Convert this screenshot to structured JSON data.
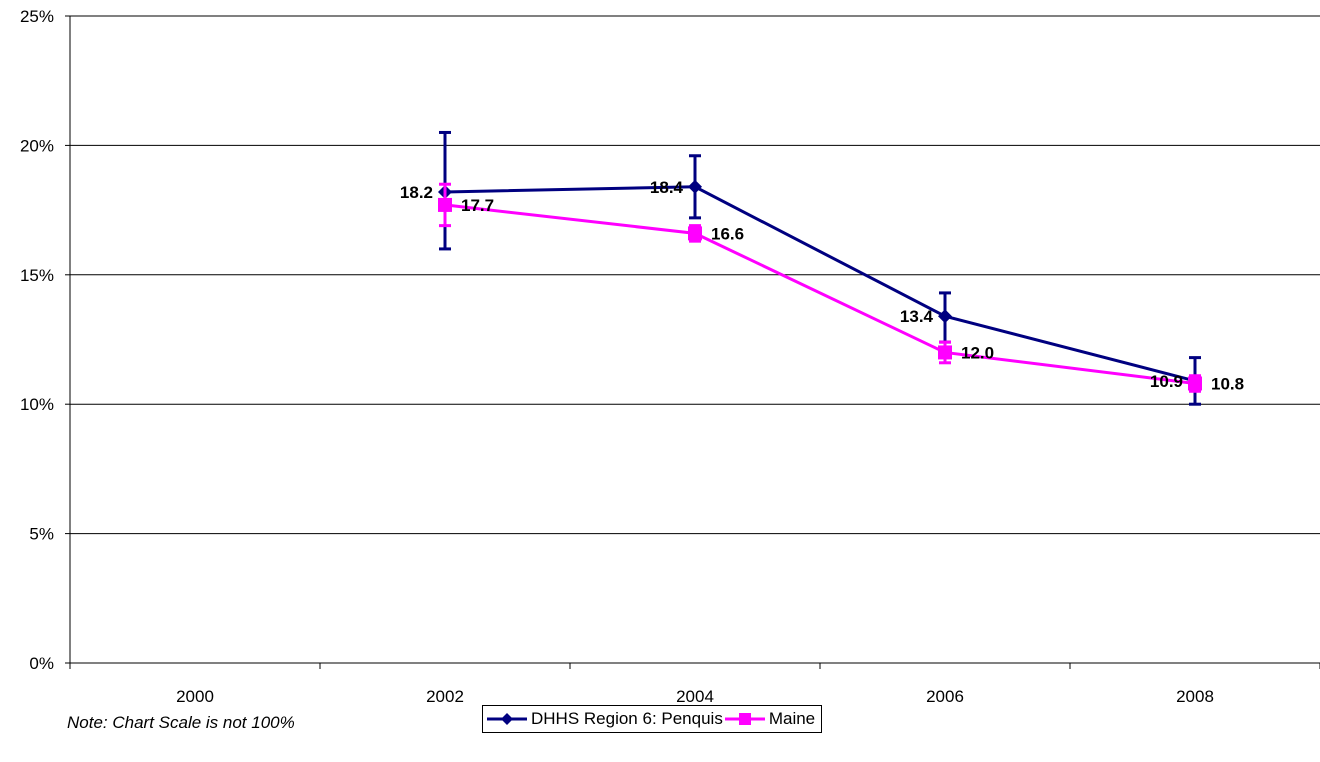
{
  "chart_data": {
    "type": "line",
    "categories": [
      "2000",
      "2002",
      "2004",
      "2006",
      "2008"
    ],
    "y_ticks": [
      "0%",
      "5%",
      "10%",
      "15%",
      "20%",
      "25%"
    ],
    "ylim": [
      0,
      25
    ],
    "grid": true,
    "legend_position": "bottom",
    "series": [
      {
        "name": "DHHS Region 6: Penquis",
        "color": "#000080",
        "marker": "diamond",
        "values": [
          null,
          18.2,
          18.4,
          13.4,
          10.9
        ],
        "labels": [
          "",
          "18.2",
          "18.4",
          "13.4",
          "10.9"
        ],
        "error_low": [
          null,
          16.0,
          17.2,
          12.4,
          10.0
        ],
        "error_high": [
          null,
          20.5,
          19.6,
          14.3,
          11.8
        ]
      },
      {
        "name": "Maine",
        "color": "#FF00FF",
        "marker": "square",
        "values": [
          null,
          17.7,
          16.6,
          12.0,
          10.8
        ],
        "labels": [
          "",
          "17.7",
          "16.6",
          "12.0",
          "10.8"
        ],
        "error_low": [
          null,
          16.9,
          16.3,
          11.6,
          10.5
        ],
        "error_high": [
          null,
          18.5,
          16.9,
          12.4,
          11.1
        ]
      }
    ]
  },
  "note": "Note: Chart Scale is not 100%"
}
